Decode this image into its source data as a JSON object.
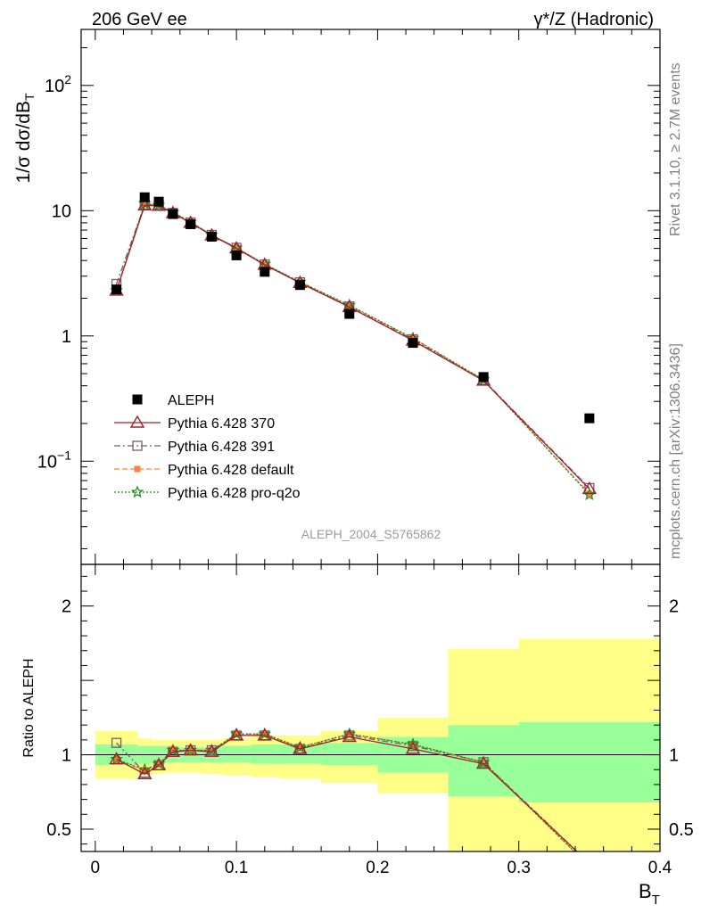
{
  "header": {
    "left": "206 GeV ee",
    "right": "γ*/Z (Hadronic)"
  },
  "side_labels": {
    "rivet": "Rivet 3.1.10, ≥ 2.7M events",
    "mcplots": "mcplots.cern.ch [arXiv:1306.3436]"
  },
  "analysis_id": "ALEPH_2004_S5765862",
  "colors": {
    "data": "#000000",
    "p370": "#a0202c",
    "p391": "#7a5a72",
    "pdefault": "#ff8040",
    "pq2o": "#1a8a1a",
    "band_inner": "#99ff99",
    "band_outer": "#ffff88"
  },
  "chart_data": [
    {
      "type": "line",
      "panel": "main",
      "ylabel": "1/σ  dσ/dB",
      "ylabel_sub": "T",
      "yscale": "log",
      "xlim": [
        -0.01,
        0.4
      ],
      "ylim": [
        0.015,
        280
      ],
      "y_ticks": [
        {
          "value": 0.1,
          "base": "10",
          "exp": "−1"
        },
        {
          "value": 1,
          "label": "1"
        },
        {
          "value": 10,
          "label": "10"
        },
        {
          "value": 100,
          "base": "10",
          "exp": "2"
        }
      ],
      "x": [
        0.015,
        0.035,
        0.045,
        0.055,
        0.0675,
        0.0825,
        0.1,
        0.12,
        0.145,
        0.18,
        0.225,
        0.275,
        0.35
      ],
      "series": [
        {
          "name": "ALEPH",
          "style": "data",
          "values": [
            2.35,
            12.8,
            11.8,
            9.4,
            7.8,
            6.2,
            4.4,
            3.25,
            2.55,
            1.5,
            0.88,
            0.47,
            0.22
          ]
        },
        {
          "name": "Pythia 6.428 370",
          "style": "p370",
          "values": [
            2.3,
            11.0,
            10.95,
            9.55,
            8.0,
            6.35,
            5.0,
            3.7,
            2.65,
            1.7,
            0.92,
            0.44,
            0.06
          ]
        },
        {
          "name": "Pythia 6.428 391",
          "style": "p391",
          "values": [
            2.6,
            11.2,
            11.1,
            9.6,
            8.05,
            6.4,
            5.05,
            3.72,
            2.68,
            1.72,
            0.94,
            0.445,
            0.061
          ]
        },
        {
          "name": "Pythia 6.428 default",
          "style": "pdefault",
          "values": [
            2.3,
            11.3,
            11.05,
            9.7,
            8.1,
            6.4,
            5.05,
            3.72,
            2.7,
            1.74,
            0.96,
            0.445,
            0.055
          ]
        },
        {
          "name": "Pythia 6.428 pro-q2o",
          "style": "pq2o",
          "values": [
            2.3,
            11.4,
            11.1,
            9.75,
            8.1,
            6.4,
            5.05,
            3.75,
            2.7,
            1.76,
            0.96,
            0.448,
            0.054
          ]
        }
      ]
    },
    {
      "type": "line",
      "panel": "ratio",
      "ylabel": "Ratio to ALEPH",
      "xlabel": "B",
      "xlabel_sub": "T",
      "xlim": [
        -0.01,
        0.4
      ],
      "ylim": [
        0.35,
        2.28
      ],
      "y_ticks": [
        0.5,
        1,
        2
      ],
      "x_ticks": [
        0,
        0.1,
        0.2,
        0.3,
        0.4
      ],
      "x_tick_labels": [
        "0",
        "0.1",
        "0.2",
        "0.3",
        "0.4"
      ],
      "reference_line": 1,
      "bands": {
        "edges": [
          0,
          0.03,
          0.04,
          0.05,
          0.06,
          0.075,
          0.09,
          0.11,
          0.13,
          0.16,
          0.2,
          0.25,
          0.3,
          0.4
        ],
        "inner_low": [
          0.93,
          0.94,
          0.94,
          0.95,
          0.95,
          0.95,
          0.95,
          0.94,
          0.94,
          0.93,
          0.88,
          0.72,
          0.68
        ],
        "inner_high": [
          1.07,
          1.06,
          1.06,
          1.06,
          1.05,
          1.05,
          1.06,
          1.07,
          1.07,
          1.08,
          1.12,
          1.2,
          1.22
        ],
        "outer_low": [
          0.84,
          0.86,
          0.87,
          0.88,
          0.88,
          0.87,
          0.86,
          0.85,
          0.84,
          0.81,
          0.74,
          0.34,
          0.34
        ],
        "outer_high": [
          1.16,
          1.11,
          1.1,
          1.1,
          1.1,
          1.1,
          1.11,
          1.13,
          1.13,
          1.16,
          1.25,
          1.71,
          1.78
        ]
      },
      "x": [
        0.015,
        0.035,
        0.045,
        0.055,
        0.0675,
        0.0825,
        0.1,
        0.12,
        0.145,
        0.18,
        0.225,
        0.275,
        0.35
      ],
      "series": [
        {
          "name": "Pythia 6.428 370",
          "style": "p370",
          "values": [
            0.97,
            0.87,
            0.93,
            1.02,
            1.03,
            1.02,
            1.13,
            1.13,
            1.04,
            1.12,
            1.04,
            0.94,
            0.27
          ]
        },
        {
          "name": "Pythia 6.428 391",
          "style": "p391",
          "values": [
            1.08,
            0.88,
            0.93,
            1.02,
            1.03,
            1.03,
            1.13,
            1.13,
            1.04,
            1.13,
            1.06,
            0.95,
            0.27
          ]
        },
        {
          "name": "Pythia 6.428 default",
          "style": "pdefault",
          "values": [
            0.97,
            0.89,
            0.94,
            1.03,
            1.03,
            1.03,
            1.14,
            1.14,
            1.05,
            1.14,
            1.07,
            0.95,
            0.25
          ]
        },
        {
          "name": "Pythia 6.428 pro-q2o",
          "style": "pq2o",
          "values": [
            0.97,
            0.9,
            0.94,
            1.03,
            1.03,
            1.03,
            1.14,
            1.14,
            1.05,
            1.14,
            1.07,
            0.95,
            0.25
          ]
        }
      ]
    }
  ]
}
